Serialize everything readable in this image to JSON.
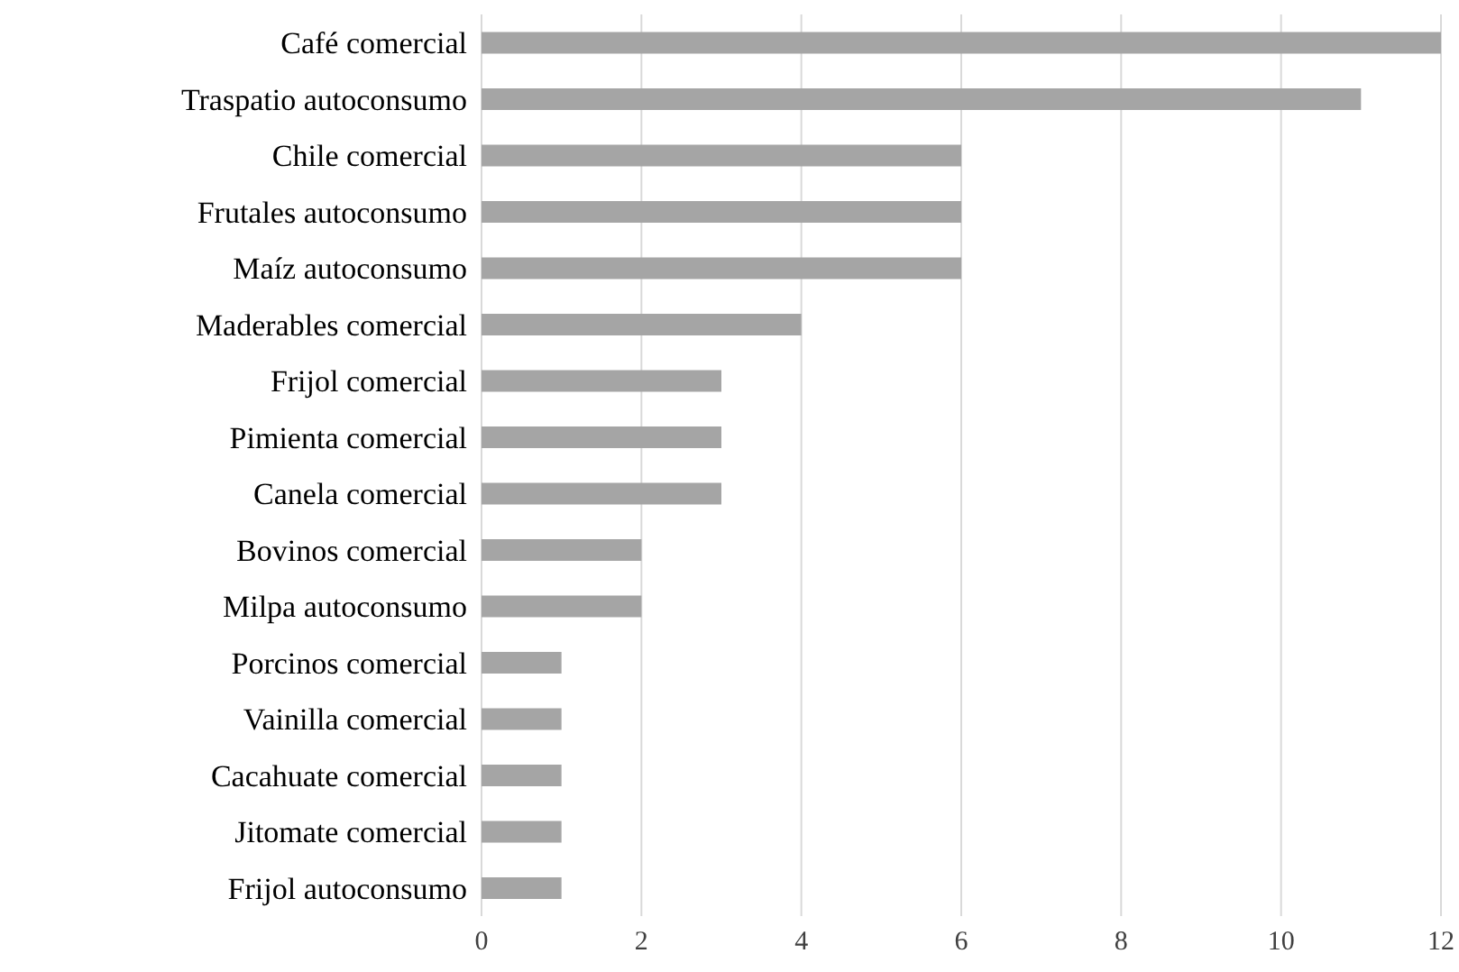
{
  "chart_data": {
    "type": "bar",
    "orientation": "horizontal",
    "categories": [
      "Café comercial",
      "Traspatio autoconsumo",
      "Chile comercial",
      "Frutales autoconsumo",
      "Maíz autoconsumo",
      "Maderables comercial",
      "Frijol comercial",
      "Pimienta comercial",
      "Canela comercial",
      "Bovinos comercial",
      "Milpa autoconsumo",
      "Porcinos comercial",
      "Vainilla comercial",
      "Cacahuate comercial",
      "Jitomate comercial",
      "Frijol autoconsumo"
    ],
    "values": [
      12,
      11,
      6,
      6,
      6,
      4,
      3,
      3,
      3,
      2,
      2,
      1,
      1,
      1,
      1,
      1
    ],
    "color": "#a5a5a5",
    "xlim": [
      0,
      12
    ],
    "xticks": [
      0,
      2,
      4,
      6,
      8,
      10,
      12
    ],
    "grid": "x",
    "legend": false
  }
}
